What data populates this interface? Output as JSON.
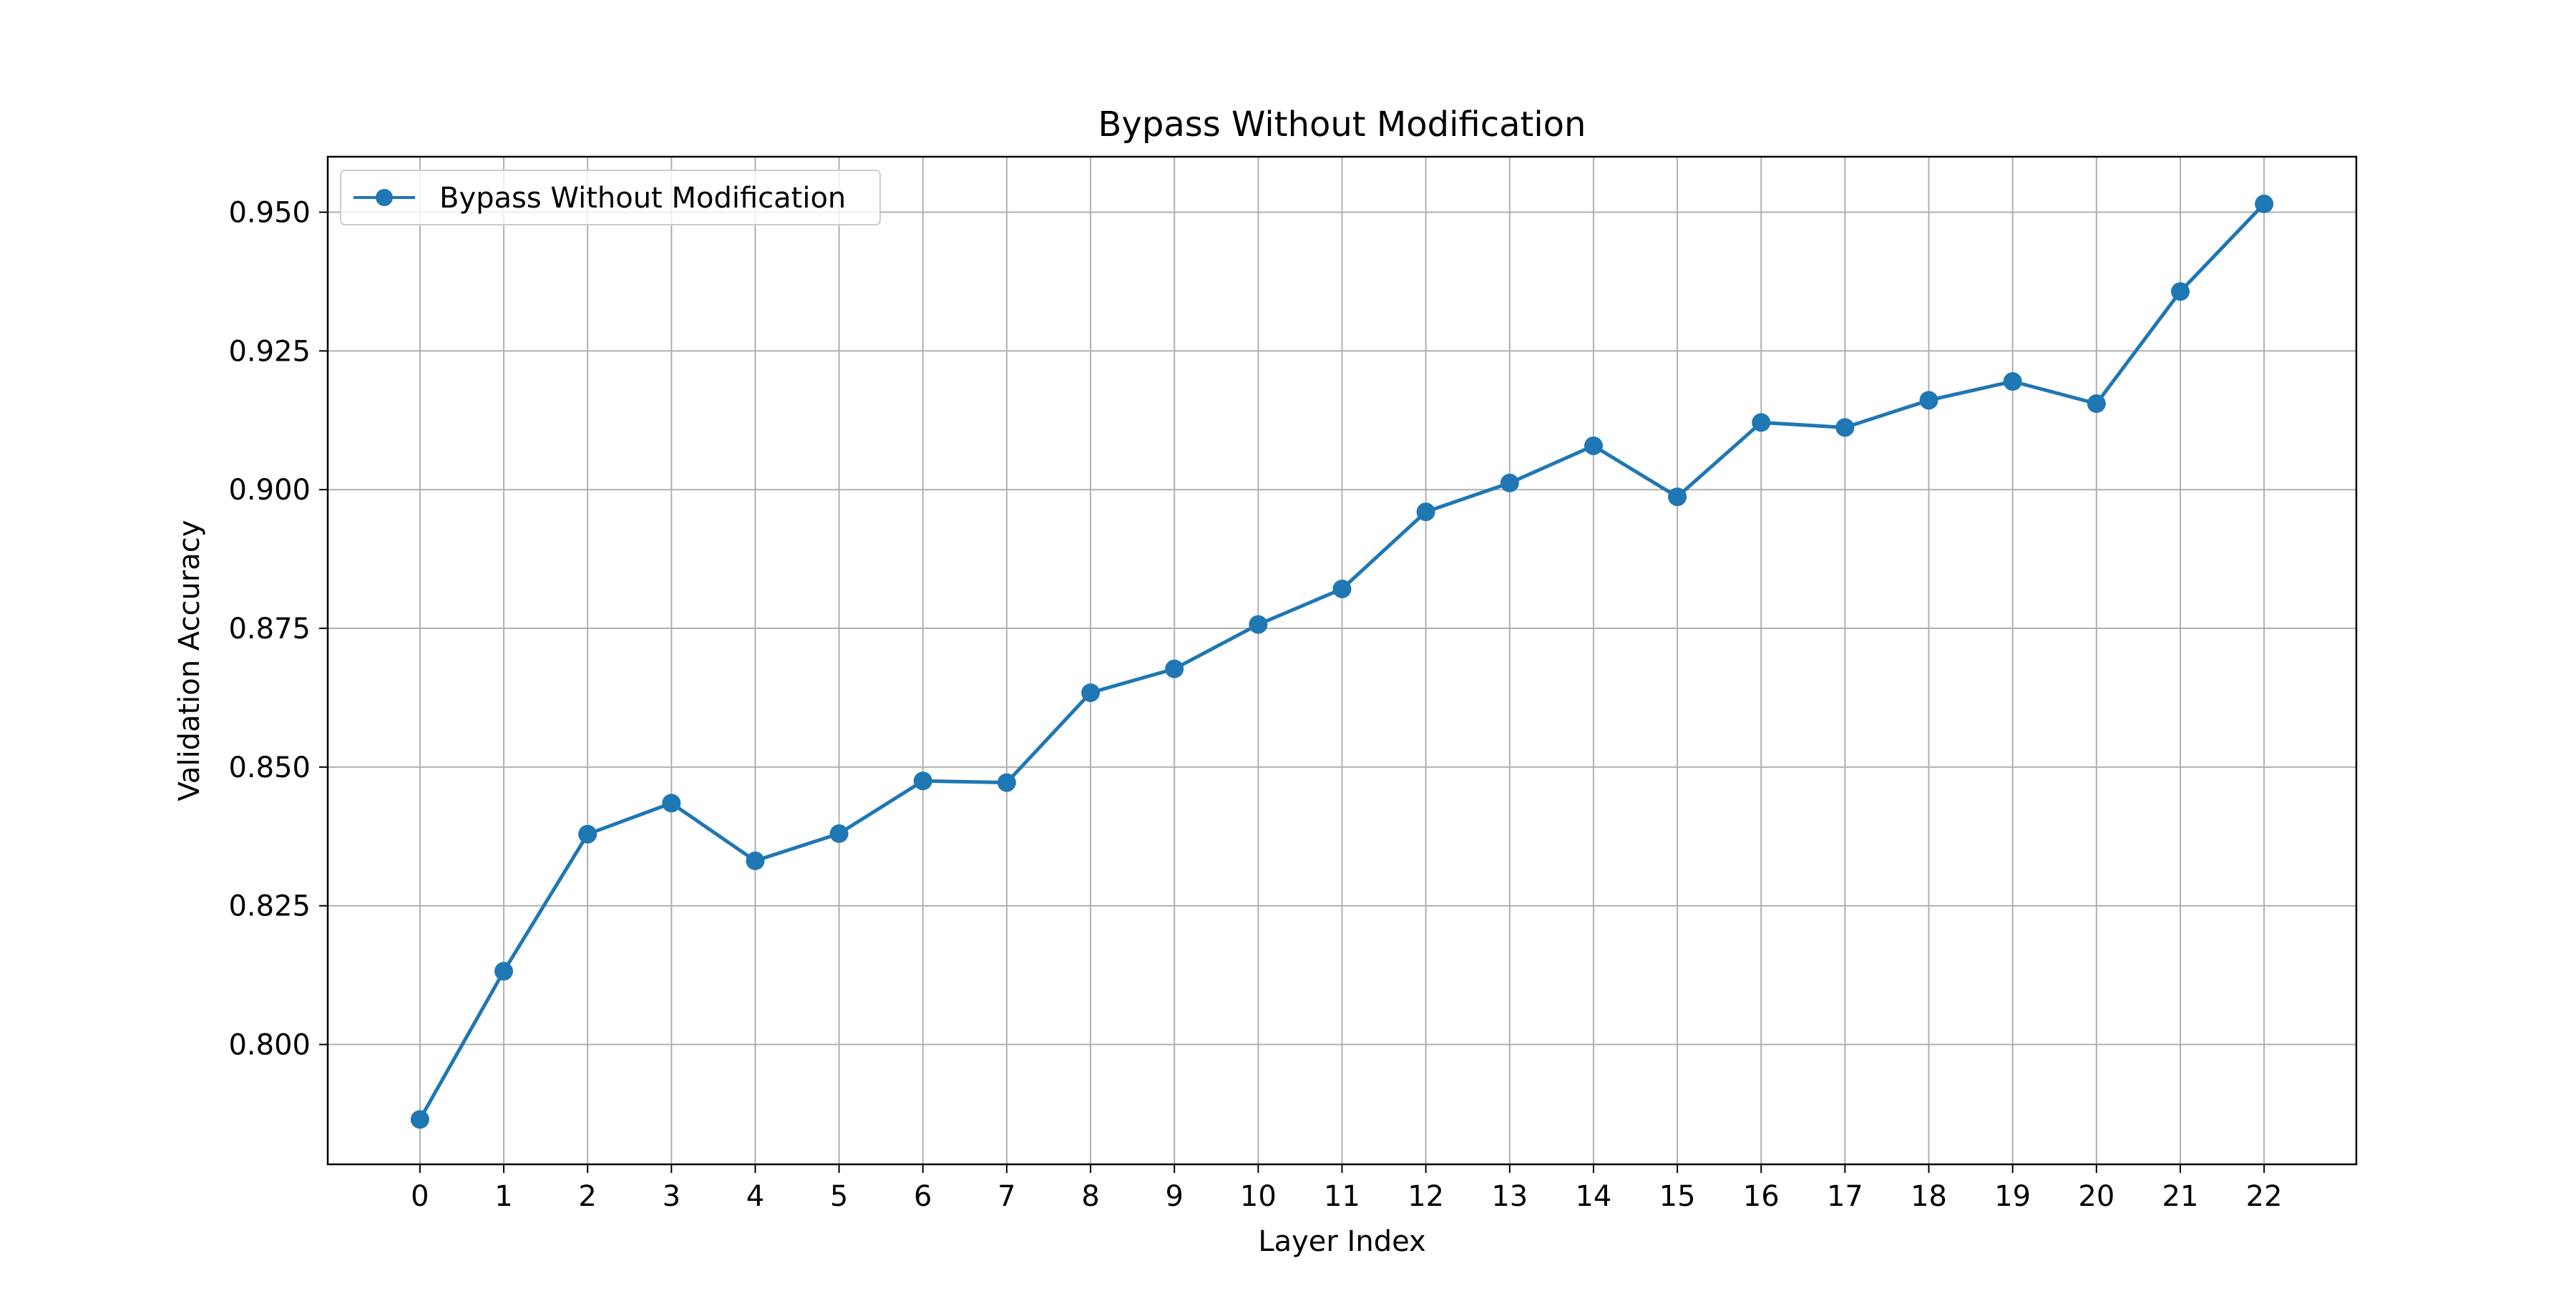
{
  "chart_data": {
    "type": "line",
    "title": "Bypass Without Modification",
    "xlabel": "Layer Index",
    "ylabel": "Validation Accuracy",
    "x": [
      0,
      1,
      2,
      3,
      4,
      5,
      6,
      7,
      8,
      9,
      10,
      11,
      12,
      13,
      14,
      15,
      16,
      17,
      18,
      19,
      20,
      21,
      22
    ],
    "x_tick_labels": [
      "0",
      "1",
      "2",
      "3",
      "4",
      "5",
      "6",
      "7",
      "8",
      "9",
      "10",
      "11",
      "12",
      "13",
      "14",
      "15",
      "16",
      "17",
      "18",
      "19",
      "20",
      "21",
      "22"
    ],
    "series": [
      {
        "name": "Bypass Without Modification",
        "color": "#1f77b4",
        "marker": "circle",
        "values": [
          0.7865,
          0.8132,
          0.8379,
          0.8435,
          0.8331,
          0.838,
          0.8475,
          0.8472,
          0.8634,
          0.8677,
          0.8757,
          0.8821,
          0.896,
          0.9012,
          0.9079,
          0.8987,
          0.9121,
          0.9112,
          0.9161,
          0.9195,
          0.9155,
          0.9357,
          0.9515
        ]
      }
    ],
    "y_ticks": [
      0.8,
      0.825,
      0.85,
      0.875,
      0.9,
      0.925,
      0.95
    ],
    "y_tick_labels": [
      "0.800",
      "0.825",
      "0.850",
      "0.875",
      "0.900",
      "0.925",
      "0.950"
    ],
    "xlim": [
      -1.1,
      23.1
    ],
    "ylim": [
      0.7784,
      0.96
    ],
    "grid": true,
    "legend_position": "upper-left"
  }
}
